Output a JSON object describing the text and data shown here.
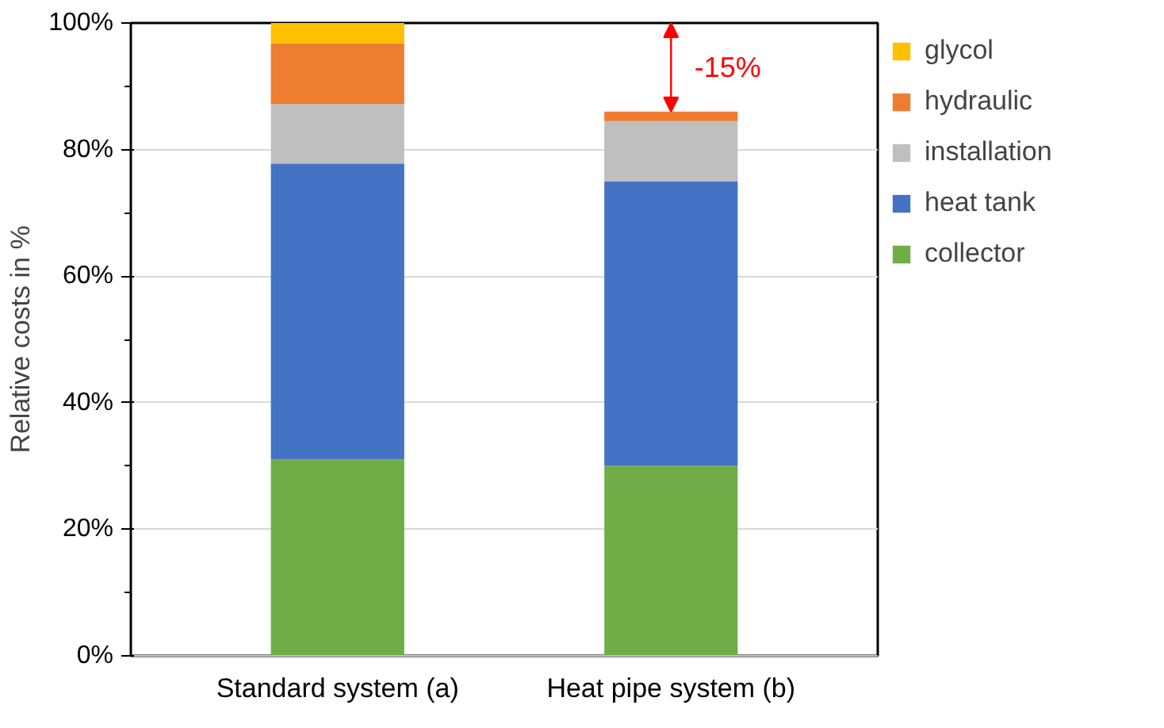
{
  "chart_data": {
    "type": "bar",
    "stacked": true,
    "ylabel": "Relative costs in %",
    "categories": [
      "Standard system (a)",
      "Heat pipe system (b)"
    ],
    "series": [
      {
        "name": "collector",
        "color": "#70ad47",
        "values": [
          31,
          30
        ]
      },
      {
        "name": "heat tank",
        "color": "#4472c4",
        "values": [
          46.8,
          45
        ]
      },
      {
        "name": "installation",
        "color": "#bfbfbf",
        "values": [
          9.4,
          9.5
        ]
      },
      {
        "name": "hydraulic",
        "color": "#ed7d31",
        "values": [
          9.6,
          1.5
        ]
      },
      {
        "name": "glycol",
        "color": "#ffc000",
        "values": [
          3.2,
          0
        ]
      }
    ],
    "ylim": [
      0,
      100
    ],
    "yticks": [
      {
        "value": 0,
        "label": "0%"
      },
      {
        "value": 20,
        "label": "20%"
      },
      {
        "value": 40,
        "label": "40%"
      },
      {
        "value": 60,
        "label": "60%"
      },
      {
        "value": 80,
        "label": "80%"
      },
      {
        "value": 100,
        "label": "100%"
      }
    ],
    "grid": "y",
    "legend": "right",
    "annotations": [
      "-15%"
    ]
  }
}
